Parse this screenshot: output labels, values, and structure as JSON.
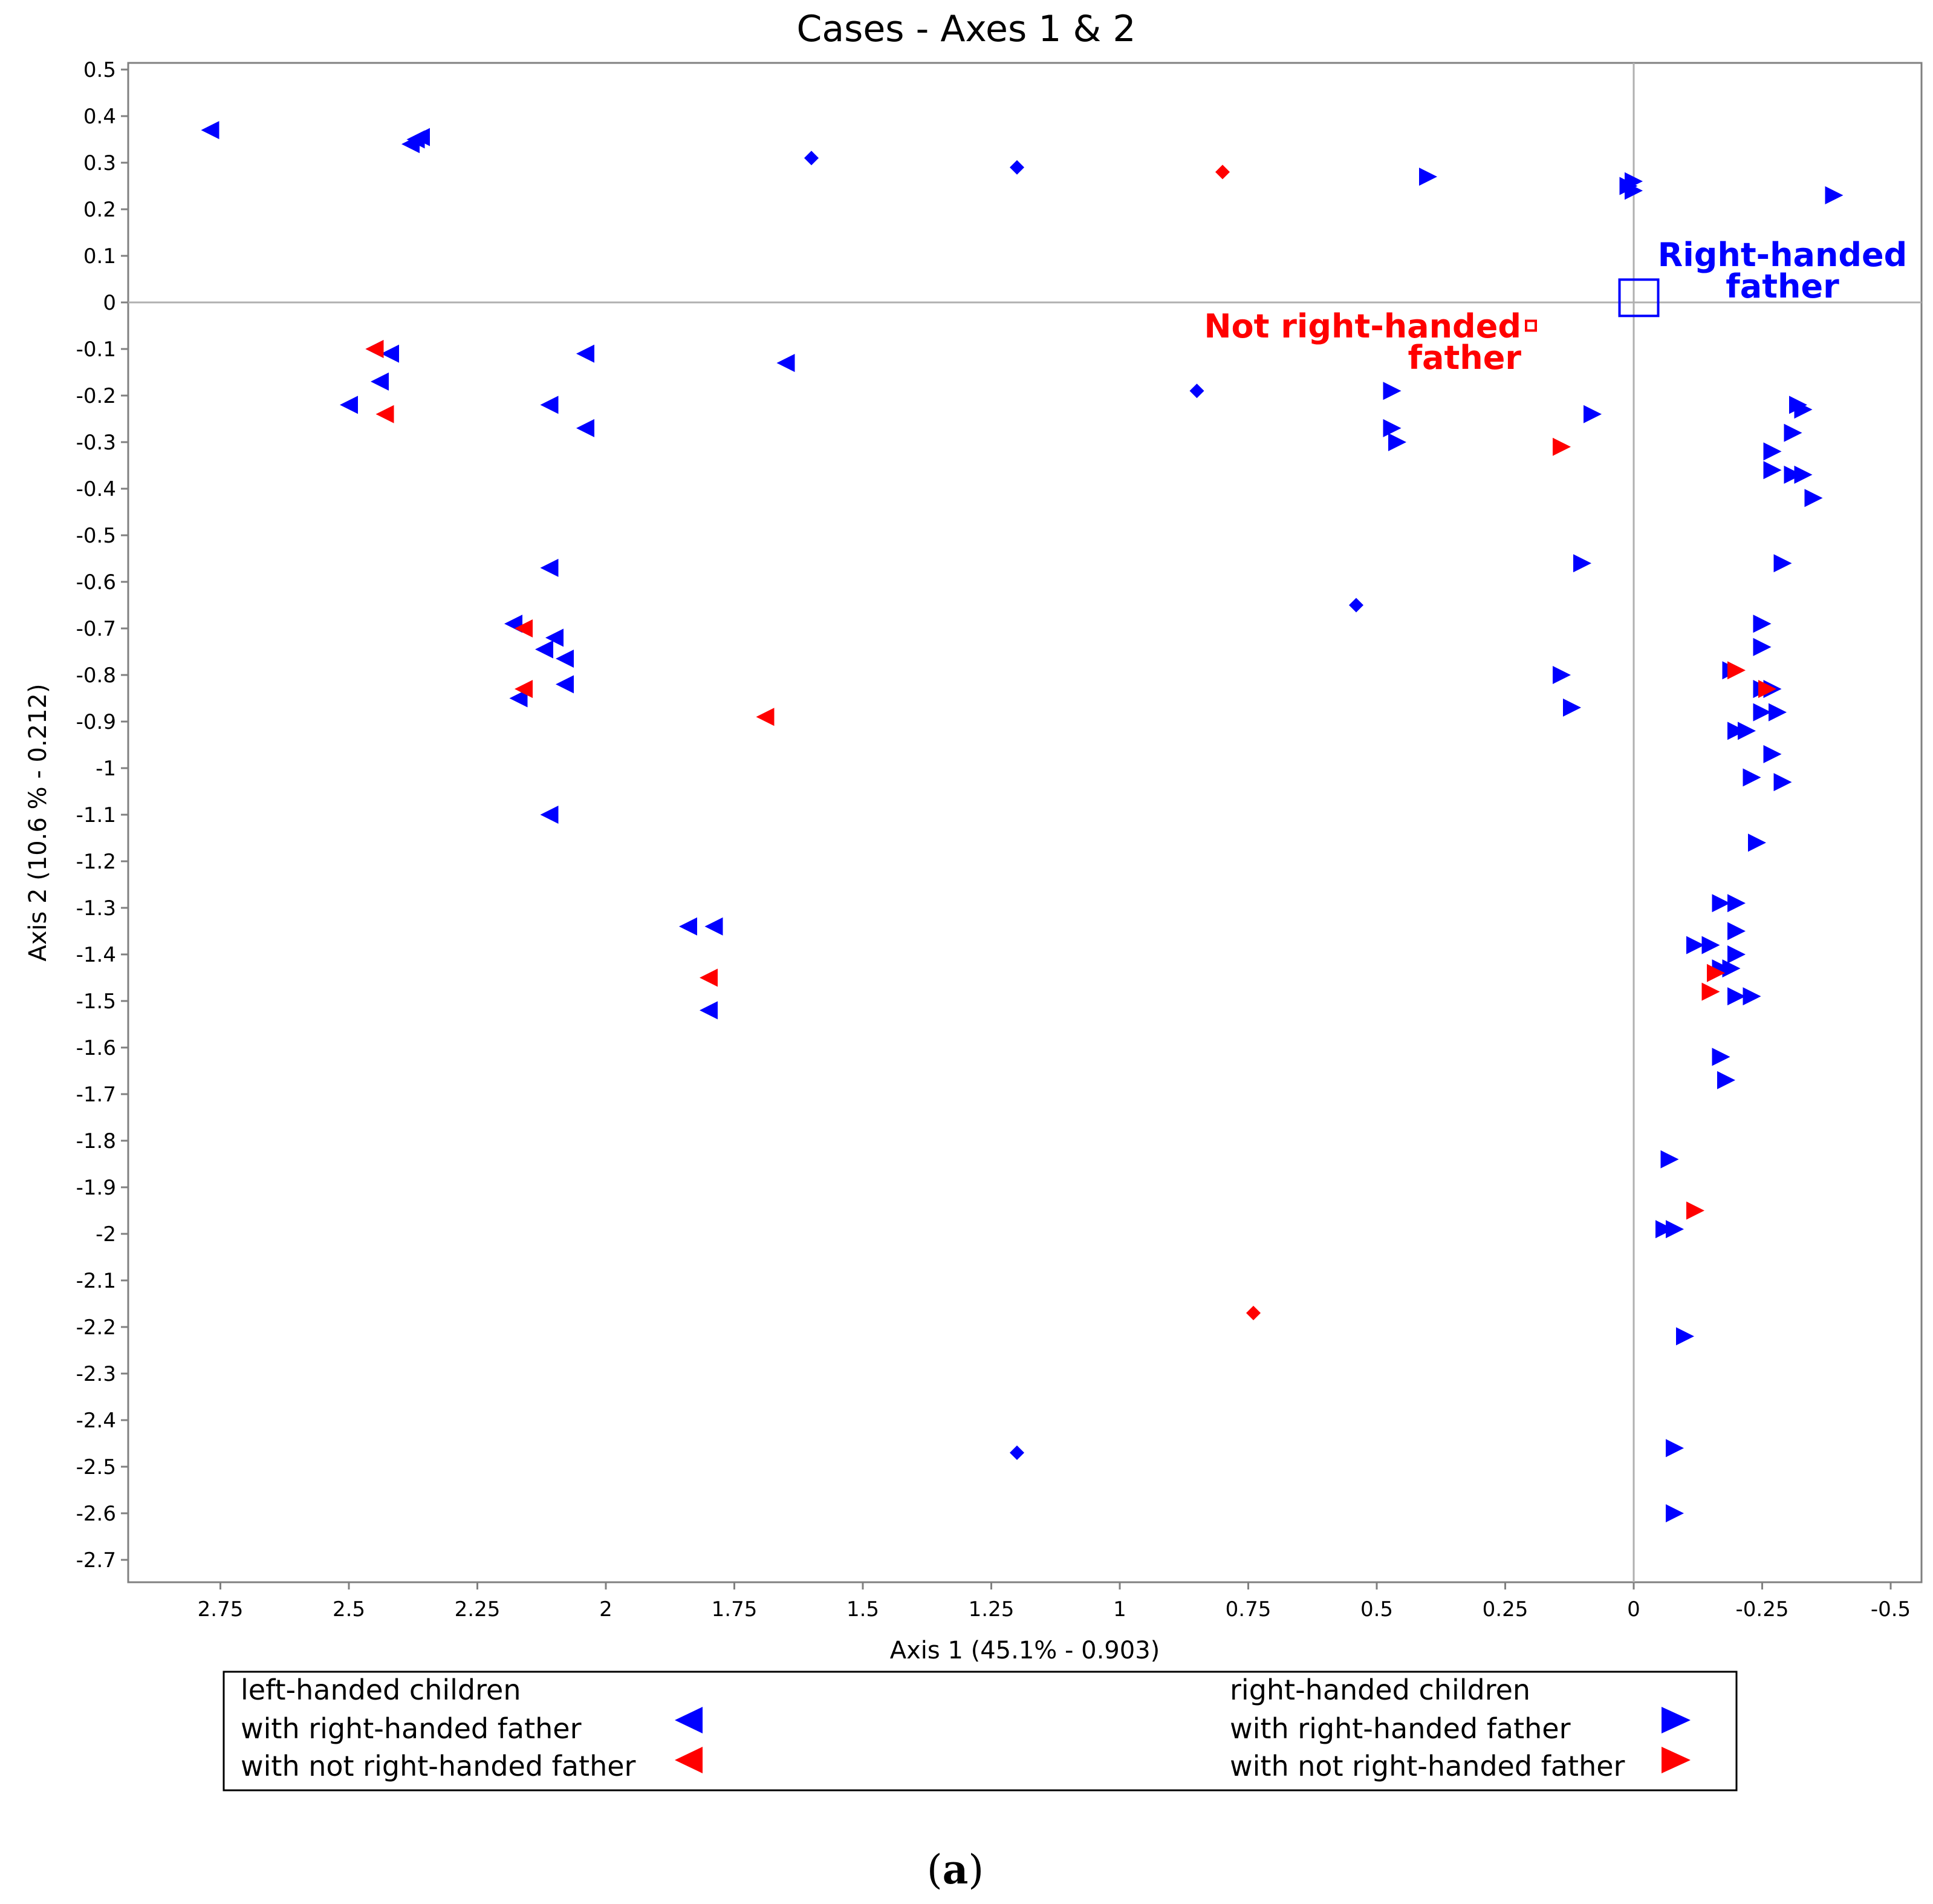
{
  "chart_data": {
    "type": "scatter",
    "title": "Cases - Axes 1 & 2",
    "xlabel": "Axis 1 (45.1% - 0.903)",
    "ylabel": "Axis 2 (10.6 % - 0.212)",
    "xlim": [
      2.9,
      -0.55
    ],
    "ylim": [
      -2.75,
      0.52
    ],
    "x_reversed": true,
    "grid": false,
    "x_ticks": [
      "2.75",
      "2.5",
      "2.25",
      "2",
      "1.75",
      "1.5",
      "1.25",
      "1",
      "0.75",
      "0.5",
      "0.25",
      "0",
      "-0.25",
      "-0.5"
    ],
    "y_ticks": [
      "0.5",
      "0.4",
      "0.3",
      "0.2",
      "0.1",
      "0",
      "-0.1",
      "-0.2",
      "-0.3",
      "-0.4",
      "-0.5",
      "-0.6",
      "-0.7",
      "-0.8",
      "-0.9",
      "-1",
      "-1.1",
      "-1.2",
      "-1.3",
      "-1.4",
      "-1.5",
      "-1.6",
      "-1.7",
      "-1.8",
      "-1.9",
      "-2",
      "-2.1",
      "-2.2",
      "-2.3",
      "-2.4",
      "-2.5",
      "-2.6",
      "-2.7"
    ],
    "colors": {
      "right_handed_father": "#0000ff",
      "not_right_handed_father": "#ff0000"
    },
    "annotations": [
      {
        "lines": [
          "Right-handed",
          "father"
        ],
        "x": -0.01,
        "y": 0.01,
        "color": "#0000ff",
        "marker": "open-square-large"
      },
      {
        "lines": [
          "Not right-handed",
          "father"
        ],
        "x": 0.2,
        "y": -0.05,
        "color": "#ff0000",
        "marker": "open-square-small"
      }
    ],
    "series": [
      {
        "name": "with right-handed father",
        "group": "left-handed children",
        "marker": "triangle-left",
        "color": "#0000ff",
        "points": [
          [
            2.77,
            0.37
          ],
          [
            2.37,
            0.35
          ],
          [
            2.38,
            0.34
          ],
          [
            2.36,
            0.355
          ],
          [
            2.45,
            -0.1
          ],
          [
            2.42,
            -0.11
          ],
          [
            2.44,
            -0.17
          ],
          [
            2.5,
            -0.22
          ],
          [
            2.04,
            -0.11
          ],
          [
            2.11,
            -0.22
          ],
          [
            2.04,
            -0.27
          ],
          [
            1.65,
            -0.13
          ],
          [
            2.11,
            -0.57
          ],
          [
            2.18,
            -0.69
          ],
          [
            2.1,
            -0.72
          ],
          [
            2.12,
            -0.745
          ],
          [
            2.08,
            -0.765
          ],
          [
            2.17,
            -0.85
          ],
          [
            2.08,
            -0.82
          ],
          [
            2.11,
            -1.1
          ],
          [
            1.84,
            -1.34
          ],
          [
            1.79,
            -1.34
          ],
          [
            1.8,
            -1.52
          ]
        ]
      },
      {
        "name": "with not right-handed father",
        "group": "left-handed children",
        "marker": "triangle-left",
        "color": "#ff0000",
        "points": [
          [
            2.45,
            -0.1
          ],
          [
            2.43,
            -0.24
          ],
          [
            2.16,
            -0.7
          ],
          [
            2.16,
            -0.83
          ],
          [
            1.69,
            -0.89
          ],
          [
            1.8,
            -1.45
          ]
        ]
      },
      {
        "name": "with right-handed father",
        "group": "right-handed children",
        "marker": "triangle-right",
        "color": "#0000ff",
        "points": [
          [
            0.4,
            0.27
          ],
          [
            0.0,
            0.26
          ],
          [
            0.01,
            0.25
          ],
          [
            0.0,
            0.24
          ],
          [
            -0.39,
            0.23
          ],
          [
            0.47,
            -0.19
          ],
          [
            0.47,
            -0.27
          ],
          [
            0.46,
            -0.3
          ],
          [
            0.08,
            -0.24
          ],
          [
            -0.32,
            -0.22
          ],
          [
            -0.33,
            -0.23
          ],
          [
            -0.31,
            -0.28
          ],
          [
            -0.27,
            -0.32
          ],
          [
            -0.27,
            -0.36
          ],
          [
            -0.31,
            -0.37
          ],
          [
            -0.33,
            -0.37
          ],
          [
            -0.35,
            -0.42
          ],
          [
            0.1,
            -0.56
          ],
          [
            -0.29,
            -0.56
          ],
          [
            -0.25,
            -0.69
          ],
          [
            -0.25,
            -0.74
          ],
          [
            0.14,
            -0.8
          ],
          [
            0.12,
            -0.87
          ],
          [
            -0.19,
            -0.79
          ],
          [
            -0.25,
            -0.83
          ],
          [
            -0.27,
            -0.83
          ],
          [
            -0.25,
            -0.88
          ],
          [
            -0.28,
            -0.88
          ],
          [
            -0.2,
            -0.92
          ],
          [
            -0.22,
            -0.92
          ],
          [
            -0.27,
            -0.97
          ],
          [
            -0.23,
            -1.02
          ],
          [
            -0.29,
            -1.03
          ],
          [
            -0.24,
            -1.16
          ],
          [
            -0.17,
            -1.29
          ],
          [
            -0.2,
            -1.29
          ],
          [
            -0.2,
            -1.35
          ],
          [
            -0.12,
            -1.38
          ],
          [
            -0.15,
            -1.38
          ],
          [
            -0.2,
            -1.4
          ],
          [
            -0.17,
            -1.43
          ],
          [
            -0.19,
            -1.43
          ],
          [
            -0.2,
            -1.49
          ],
          [
            -0.23,
            -1.49
          ],
          [
            -0.17,
            -1.62
          ],
          [
            -0.18,
            -1.67
          ],
          [
            -0.07,
            -1.84
          ],
          [
            -0.06,
            -1.99
          ],
          [
            -0.08,
            -1.99
          ],
          [
            -0.1,
            -2.22
          ],
          [
            -0.08,
            -2.46
          ],
          [
            -0.08,
            -2.6
          ]
        ]
      },
      {
        "name": "with not right-handed father",
        "group": "right-handed children",
        "marker": "triangle-right",
        "color": "#ff0000",
        "points": [
          [
            0.14,
            -0.31
          ],
          [
            -0.2,
            -0.79
          ],
          [
            -0.26,
            -0.83
          ],
          [
            -0.16,
            -1.44
          ],
          [
            -0.15,
            -1.48
          ],
          [
            -0.12,
            -1.95
          ]
        ]
      },
      {
        "name": "",
        "marker": "diamond",
        "color": "#0000ff",
        "points": [
          [
            1.6,
            0.31
          ],
          [
            1.2,
            0.29
          ],
          [
            0.85,
            -0.19
          ],
          [
            0.54,
            -0.65
          ],
          [
            1.2,
            -2.47
          ]
        ]
      },
      {
        "name": "",
        "marker": "diamond",
        "color": "#ff0000",
        "points": [
          [
            0.8,
            0.28
          ],
          [
            0.74,
            -2.17
          ]
        ]
      }
    ],
    "legend": {
      "placement": "bottom",
      "left_group": "left-handed children",
      "right_group": "right-handed children",
      "entries": [
        "with right-handed father",
        "with not right-handed father"
      ]
    },
    "caption": {
      "open": "(",
      "letter": "a",
      "close": ")"
    }
  }
}
